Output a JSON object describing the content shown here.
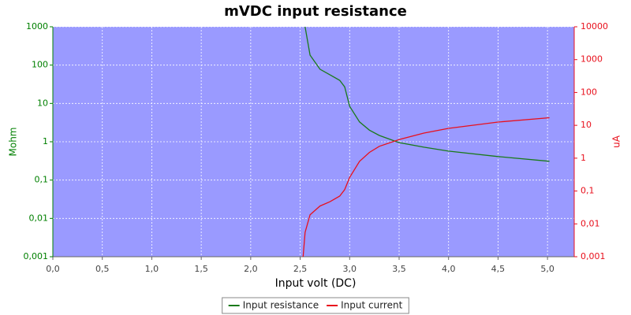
{
  "chart_data": {
    "type": "line",
    "title": "mVDC input resistance",
    "x_label": "Input volt (DC)",
    "y_label": "Mohm",
    "y2_label": "uA",
    "log_y": true,
    "log_y2": true,
    "grid": true,
    "legend": "bottom",
    "background": "#9a9aff",
    "x": [
      2.53,
      2.55,
      2.6,
      2.7,
      2.8,
      2.9,
      2.95,
      3.0,
      3.1,
      3.2,
      3.3,
      3.5,
      3.75,
      4.0,
      4.5,
      5.02
    ],
    "series": [
      {
        "name": "Input resistance",
        "color": "#1a7a1a",
        "values": [
          null,
          1000,
          182,
          78,
          56,
          40,
          27,
          8.4,
          3.3,
          2.0,
          1.46,
          0.95,
          0.72,
          0.57,
          0.41,
          0.31
        ]
      },
      {
        "name": "Input current",
        "color": "#e8101c",
        "axis": "y2",
        "values": [
          0.001,
          0.0055,
          0.019,
          0.035,
          0.047,
          0.07,
          0.11,
          0.26,
          0.8,
          1.5,
          2.3,
          3.7,
          5.8,
          8.1,
          12.6,
          17
        ]
      }
    ],
    "xlim": [
      0,
      5.27
    ],
    "xticks": [
      {
        "value": 0,
        "label": "0,0"
      },
      {
        "value": 0.5,
        "label": "0,5"
      },
      {
        "value": 1,
        "label": "1,0"
      },
      {
        "value": 1.5,
        "label": "1,5"
      },
      {
        "value": 2,
        "label": "2,0"
      },
      {
        "value": 2.5,
        "label": "2,5"
      },
      {
        "value": 3,
        "label": "3,0"
      },
      {
        "value": 3.5,
        "label": "3,5"
      },
      {
        "value": 4,
        "label": "4,0"
      },
      {
        "value": 4.5,
        "label": "4,5"
      },
      {
        "value": 5,
        "label": "5,0"
      }
    ],
    "ylim": [
      0.001,
      1000
    ],
    "yticks": [
      {
        "value": 0.001,
        "label": "0,001"
      },
      {
        "value": 0.01,
        "label": "0,01"
      },
      {
        "value": 0.1,
        "label": "0,1"
      },
      1,
      10,
      100,
      1000
    ],
    "y2lim": [
      0.001,
      10000
    ],
    "y2ticks": [
      {
        "value": 0.001,
        "label": "0,001"
      },
      {
        "value": 0.01,
        "label": "0,01"
      },
      {
        "value": 0.1,
        "label": "0,1"
      },
      1,
      10,
      100,
      1000,
      10000
    ]
  }
}
